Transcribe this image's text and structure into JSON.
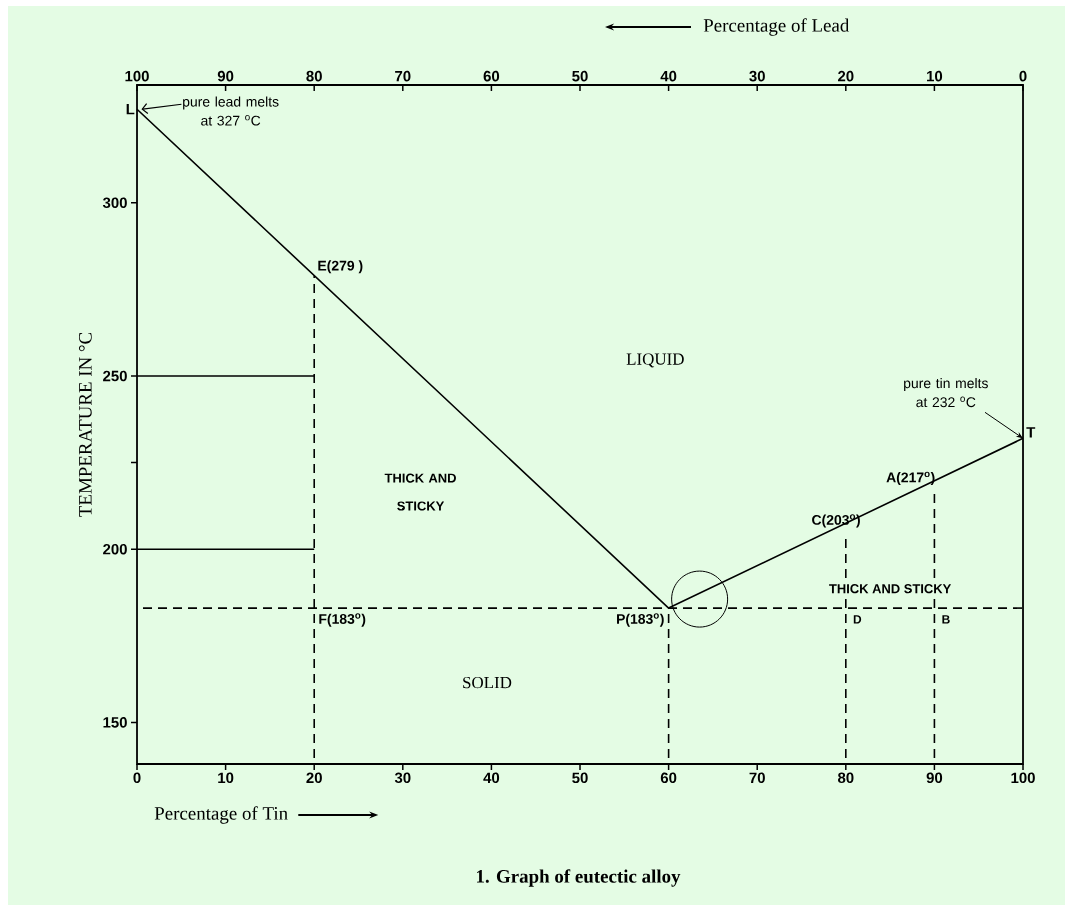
{
  "chart_data": {
    "type": "line",
    "title": "1. Graph of eutectic alloy",
    "xlabel": "Percentage of Tin",
    "x2label": "Percentage of Lead",
    "ylabel": "TEMPERATURE IN °C",
    "xlim": [
      0,
      100
    ],
    "xticks": [
      0,
      10,
      20,
      30,
      40,
      50,
      60,
      70,
      80,
      90,
      100
    ],
    "x2lim": [
      100,
      0
    ],
    "x2ticks": [
      100,
      90,
      80,
      70,
      60,
      50,
      40,
      30,
      20,
      10,
      0
    ],
    "ylim": [
      138,
      334
    ],
    "yticks": [
      150,
      200,
      {
        "value": 225,
        "label": null
      },
      250,
      300
    ],
    "marker": "none",
    "series": [
      {
        "x": [
          0,
          60,
          100
        ],
        "values": [
          327,
          183,
          232
        ],
        "color": "#000000",
        "line_style": "solid"
      },
      {
        "x": [
          20,
          20
        ],
        "values": [
          138,
          279
        ],
        "color": "#000000",
        "line_style": "dashed"
      },
      {
        "x": [
          60,
          60
        ],
        "values": [
          138,
          183
        ],
        "color": "#000000",
        "line_style": "dashed"
      },
      {
        "x": [
          80,
          80
        ],
        "values": [
          138,
          203
        ],
        "color": "#000000",
        "line_style": "dashed"
      },
      {
        "x": [
          90,
          90
        ],
        "values": [
          138,
          217
        ],
        "color": "#000000",
        "line_style": "dashed"
      },
      {
        "x": [
          0,
          20
        ],
        "values": [
          250,
          250
        ],
        "color": "#000000",
        "line_style": "solid"
      },
      {
        "x": [
          0,
          20
        ],
        "values": [
          200,
          200
        ],
        "color": "#000000",
        "line_style": "solid"
      }
    ],
    "ref_lines": [
      {
        "axis": "y",
        "value": 183,
        "color": "#000000",
        "line_style": "dashed"
      }
    ],
    "annotations": [
      {
        "text": "L",
        "x": 0,
        "y": 327
      },
      {
        "text": "E(279 )",
        "x": 20,
        "y": 279
      },
      {
        "text": "F(183$^{o}$)",
        "x": 20,
        "y": 183
      },
      {
        "text": "P(183$^{o}$)",
        "x": 60,
        "y": 183
      },
      {
        "text": "C(203$^{o}$)",
        "x": 80,
        "y": 203
      },
      {
        "text": "A(217$^{o}$)",
        "x": 90,
        "y": 217
      },
      {
        "text": "T",
        "x": 100,
        "y": 232
      },
      {
        "text": "D",
        "x": 80,
        "y": 183
      },
      {
        "text": "B",
        "x": 90,
        "y": 183
      },
      {
        "text": "pure lead melts at 327 $^{o}$C",
        "x": 0.5,
        "y": 327
      },
      {
        "text": "pure tin melts at 232 $^{o}$C",
        "x": 100,
        "y": 232
      },
      "LIQUID",
      "THICK AND STICKY",
      "THICK AND STICKY",
      "SOLID"
    ]
  }
}
